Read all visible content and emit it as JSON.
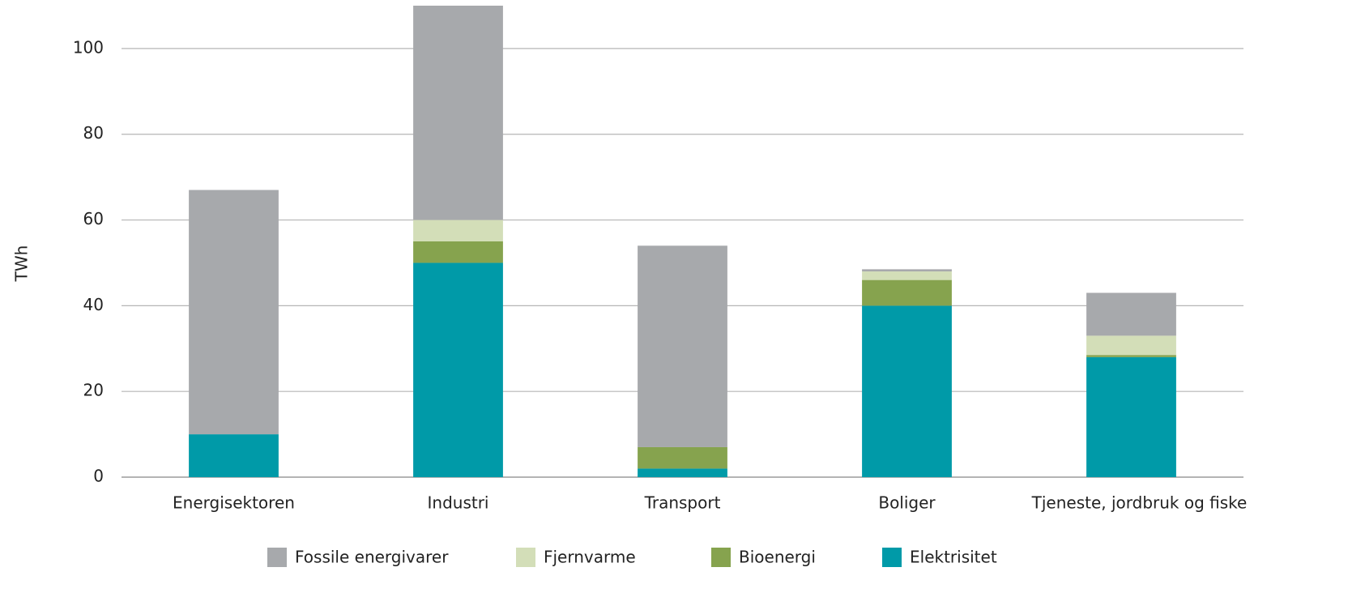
{
  "chart_data": {
    "type": "stacked_bar",
    "y_label": "TWh",
    "categories": [
      "Energisektoren",
      "Industri",
      "Transport",
      "Boliger",
      "Tjeneste, jordbruk og fiske"
    ],
    "series": [
      {
        "name": "Fossile energivarer",
        "color": "#a7a9ac",
        "values": [
          57,
          50,
          47,
          0.5,
          10
        ]
      },
      {
        "name": "Fjernvarme",
        "color": "#d3deb8",
        "values": [
          0,
          5,
          0,
          2,
          4.5
        ]
      },
      {
        "name": "Bioenergi",
        "color": "#86a34e",
        "values": [
          0,
          5,
          5,
          6,
          0.5
        ]
      },
      {
        "name": "Elektrisitet",
        "color": "#009aa8",
        "values": [
          10,
          50,
          2,
          40,
          28
        ]
      }
    ],
    "ylim": [
      0,
      110
    ],
    "yticks": [
      0,
      20,
      40,
      60,
      80,
      100
    ],
    "grid": true,
    "legend": "bottom"
  }
}
